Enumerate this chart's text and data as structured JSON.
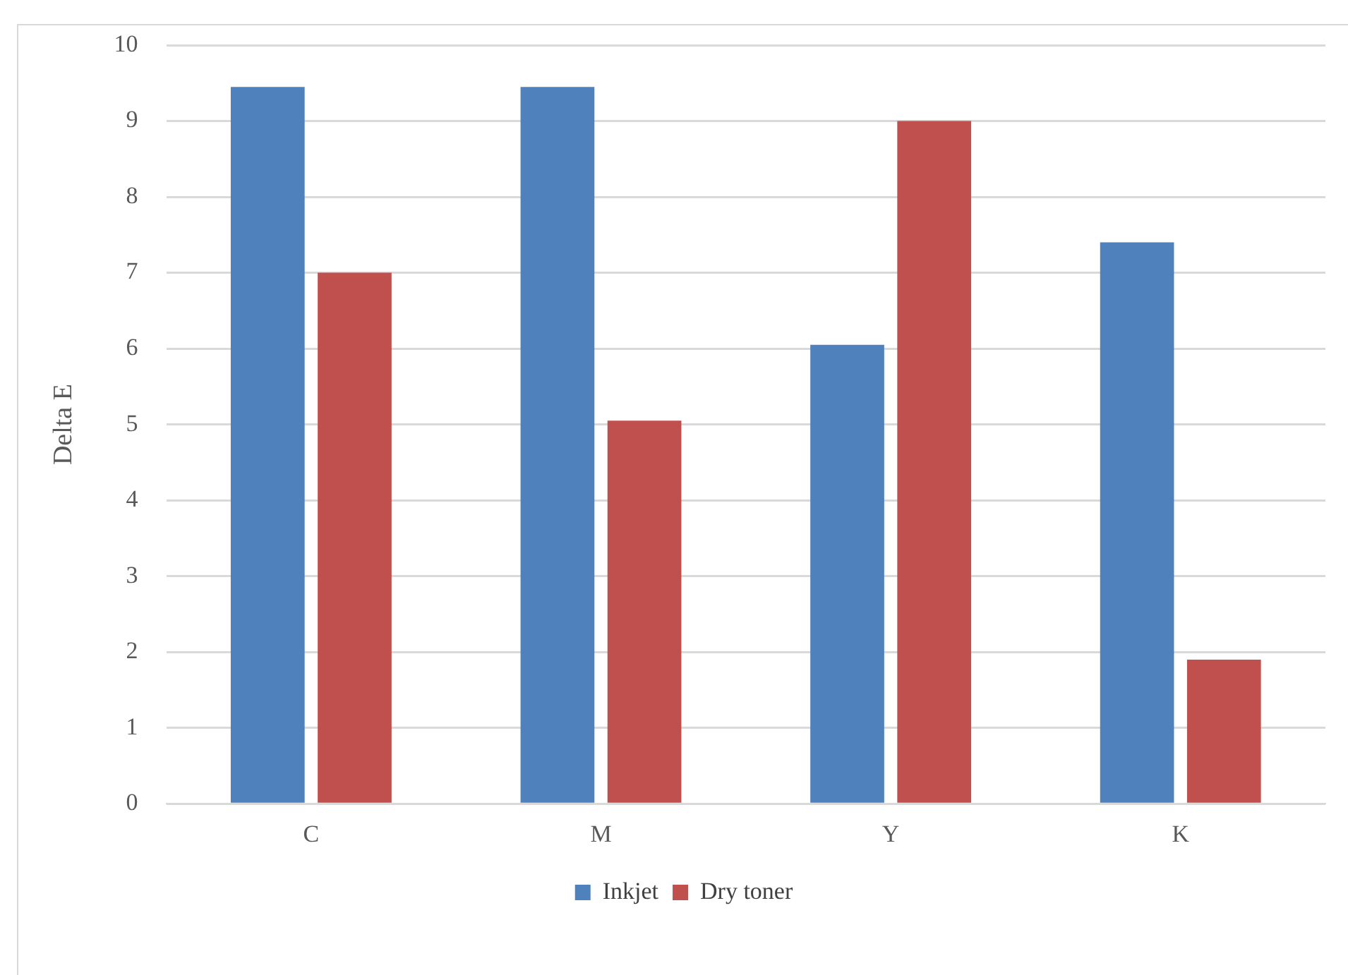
{
  "chart_data": {
    "type": "bar",
    "ylabel": "Delta E",
    "categories": [
      "C",
      "M",
      "Y",
      "K"
    ],
    "series": [
      {
        "name": "Inkjet",
        "color": "#4f81bd",
        "values": [
          9.45,
          9.45,
          6.05,
          7.4
        ]
      },
      {
        "name": "Dry toner",
        "color": "#c0504d",
        "values": [
          7.0,
          5.05,
          9.0,
          1.9
        ]
      }
    ],
    "ylim": [
      0,
      10
    ],
    "yticks": [
      0,
      1,
      2,
      3,
      4,
      5,
      6,
      7,
      8,
      9,
      10
    ],
    "grid": "y",
    "legend": "bottom"
  }
}
